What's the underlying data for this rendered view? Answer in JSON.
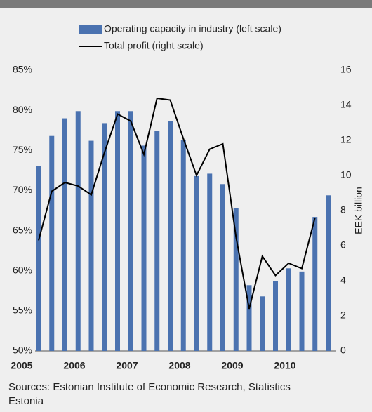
{
  "chart_data": {
    "type": "bar-line",
    "categories": [
      "2005",
      null,
      null,
      null,
      "2006",
      null,
      null,
      null,
      "2007",
      null,
      null,
      null,
      "2008",
      null,
      null,
      null,
      "2009",
      null,
      null,
      null,
      "2010",
      null,
      null
    ],
    "series": [
      {
        "name": "Operating capacity in industry (left scale)",
        "type": "bar",
        "color": "#4a72b0",
        "values": [
          73.1,
          76.8,
          79.0,
          79.9,
          76.2,
          78.4,
          79.9,
          79.9,
          75.6,
          77.4,
          78.7,
          76.3,
          71.8,
          72.1,
          70.8,
          67.8,
          58.2,
          56.8,
          58.7,
          60.3,
          59.9,
          66.7,
          69.4
        ]
      },
      {
        "name": "Total profit (right scale)",
        "type": "line",
        "axis": "y2",
        "color": "#000000",
        "values": [
          6.3,
          9.1,
          9.6,
          9.4,
          8.9,
          11.3,
          13.5,
          13.1,
          11.2,
          14.4,
          14.3,
          12.1,
          10.0,
          11.5,
          11.8,
          6.5,
          2.4,
          5.4,
          4.3,
          5.0,
          4.7,
          7.6,
          null
        ]
      }
    ],
    "ylim": [
      50,
      85
    ],
    "yticks": [
      {
        "value": 50,
        "label": "50%"
      },
      {
        "value": 55,
        "label": "55%"
      },
      {
        "value": 60,
        "label": "60%"
      },
      {
        "value": 65,
        "label": "65%"
      },
      {
        "value": 70,
        "label": "70%"
      },
      {
        "value": 75,
        "label": "75%"
      },
      {
        "value": 80,
        "label": "80%"
      },
      {
        "value": 85,
        "label": "85%"
      }
    ],
    "y2lim": [
      0,
      16
    ],
    "y2ticks": [
      0,
      2,
      4,
      6,
      8,
      10,
      12,
      14,
      16
    ],
    "y2label": "EEK billion",
    "source": "Sources: Estonian Institute of Economic Research, Statistics Estonia"
  }
}
